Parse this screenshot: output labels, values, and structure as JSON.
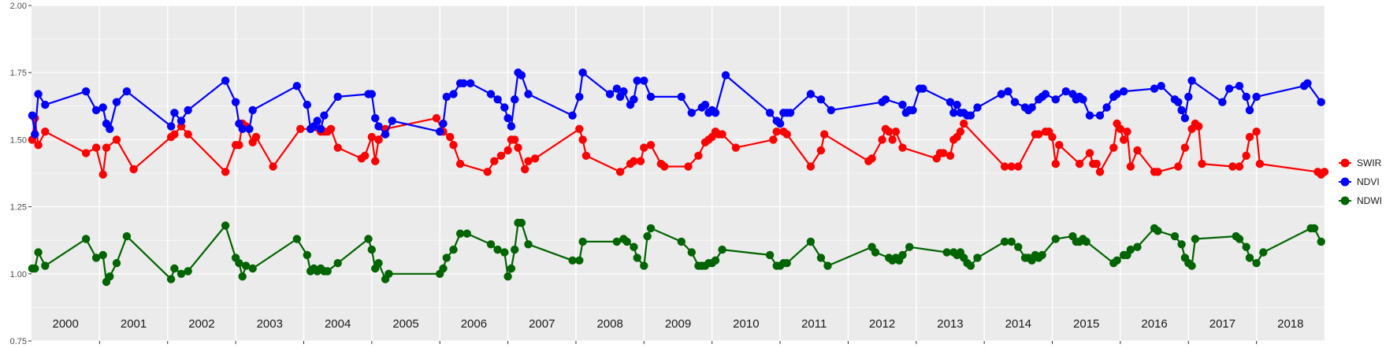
{
  "chart_data": {
    "type": "line",
    "title": "",
    "xlabel": "",
    "ylabel": "",
    "ylim": [
      0.75,
      2.0
    ],
    "xlim": [
      2000.0,
      2019.0
    ],
    "yticks": [
      "0.75",
      "1.00",
      "1.25",
      "1.50",
      "1.75",
      "2.00"
    ],
    "year_labels": [
      "2000",
      "2001",
      "2002",
      "2003",
      "2004",
      "2005",
      "2006",
      "2007",
      "2008",
      "2009",
      "2010",
      "2011",
      "2012",
      "2013",
      "2014",
      "2015",
      "2016",
      "2017",
      "2018"
    ],
    "grid": true,
    "legend_position": "right",
    "colors": {
      "panel": "#ebebeb",
      "grid": "#ffffff",
      "SWIR": "#ff0000",
      "NDVI": "#0000ff",
      "NDWI": "#006400"
    },
    "series": [
      {
        "name": "SWIR",
        "color": "#ff0000",
        "x": [
          2000.01,
          2000.05,
          2000.1,
          2000.2,
          2000.8,
          2000.95,
          2001.05,
          2001.1,
          2001.25,
          2001.5,
          2002.05,
          2002.1,
          2002.2,
          2002.3,
          2002.85,
          2003.0,
          2003.05,
          2003.1,
          2003.15,
          2003.25,
          2003.3,
          2003.3,
          2003.55,
          2003.95,
          2004.1,
          2004.25,
          2004.3,
          2004.35,
          2004.4,
          2004.5,
          2004.85,
          2004.9,
          2005.0,
          2005.05,
          2005.1,
          2005.1,
          2005.2,
          2005.95,
          2006.05,
          2006.15,
          2006.2,
          2006.3,
          2006.7,
          2006.8,
          2006.9,
          2007.0,
          2007.05,
          2007.1,
          2007.15,
          2007.25,
          2007.3,
          2007.4,
          2008.05,
          2008.1,
          2008.15,
          2008.65,
          2008.8,
          2008.85,
          2008.95,
          2009.0,
          2009.1,
          2009.25,
          2009.3,
          2009.65,
          2009.8,
          2009.9,
          2009.95,
          2010.0,
          2010.05,
          2010.1,
          2010.15,
          2010.35,
          2010.9,
          2010.95,
          2011.05,
          2011.1,
          2011.45,
          2011.6,
          2011.65,
          2012.3,
          2012.35,
          2012.5,
          2012.55,
          2012.6,
          2012.65,
          2012.7,
          2012.8,
          2013.3,
          2013.35,
          2013.4,
          2013.5,
          2013.55,
          2013.6,
          2013.65,
          2013.7,
          2014.3,
          2014.4,
          2014.5,
          2014.75,
          2014.8,
          2014.9,
          2014.95,
          2015.0,
          2015.05,
          2015.1,
          2015.4,
          2015.55,
          2015.6,
          2015.65,
          2015.7,
          2015.9,
          2015.95,
          2016.0,
          2016.05,
          2016.1,
          2016.15,
          2016.25,
          2016.5,
          2016.55,
          2016.85,
          2016.95,
          2017.05,
          2017.1,
          2017.15,
          2017.2,
          2017.65,
          2017.75,
          2017.85,
          2017.9,
          2018.0,
          2018.05,
          2018.9,
          2018.95,
          2019.0
        ],
        "values": [
          1.5,
          1.58,
          1.48,
          1.53,
          1.45,
          1.47,
          1.37,
          1.47,
          1.5,
          1.39,
          1.51,
          1.52,
          1.55,
          1.52,
          1.38,
          1.48,
          1.48,
          1.56,
          1.55,
          1.49,
          1.51,
          1.51,
          1.4,
          1.54,
          1.54,
          1.53,
          1.53,
          1.53,
          1.54,
          1.47,
          1.43,
          1.44,
          1.51,
          1.42,
          1.5,
          1.5,
          1.54,
          1.58,
          1.53,
          1.51,
          1.48,
          1.41,
          1.38,
          1.42,
          1.44,
          1.46,
          1.5,
          1.5,
          1.47,
          1.39,
          1.42,
          1.43,
          1.54,
          1.5,
          1.44,
          1.38,
          1.41,
          1.42,
          1.42,
          1.47,
          1.48,
          1.41,
          1.4,
          1.4,
          1.44,
          1.49,
          1.5,
          1.51,
          1.53,
          1.52,
          1.52,
          1.47,
          1.5,
          1.53,
          1.53,
          1.52,
          1.4,
          1.46,
          1.52,
          1.42,
          1.43,
          1.5,
          1.54,
          1.53,
          1.5,
          1.53,
          1.47,
          1.43,
          1.45,
          1.45,
          1.44,
          1.5,
          1.51,
          1.53,
          1.56,
          1.4,
          1.4,
          1.4,
          1.52,
          1.52,
          1.53,
          1.53,
          1.51,
          1.41,
          1.48,
          1.41,
          1.45,
          1.41,
          1.41,
          1.38,
          1.47,
          1.56,
          1.54,
          1.5,
          1.53,
          1.4,
          1.46,
          1.38,
          1.38,
          1.4,
          1.47,
          1.54,
          1.56,
          1.55,
          1.41,
          1.4,
          1.4,
          1.44,
          1.51,
          1.53,
          1.41,
          1.38,
          1.37,
          1.38
        ]
      },
      {
        "name": "NDVI",
        "color": "#0000ff",
        "x": [
          2000.01,
          2000.05,
          2000.1,
          2000.2,
          2000.8,
          2000.95,
          2001.05,
          2001.1,
          2001.15,
          2001.25,
          2001.4,
          2002.05,
          2002.1,
          2002.2,
          2002.3,
          2002.85,
          2003.0,
          2003.05,
          2003.1,
          2003.2,
          2003.25,
          2003.9,
          2004.05,
          2004.1,
          2004.15,
          2004.2,
          2004.25,
          2004.3,
          2004.5,
          2004.95,
          2005.0,
          2005.05,
          2005.1,
          2005.2,
          2005.3,
          2006.0,
          2006.05,
          2006.1,
          2006.2,
          2006.3,
          2006.35,
          2006.45,
          2006.75,
          2006.85,
          2006.95,
          2007.0,
          2007.05,
          2007.1,
          2007.15,
          2007.2,
          2007.3,
          2007.95,
          2008.05,
          2008.1,
          2008.5,
          2008.6,
          2008.65,
          2008.7,
          2008.8,
          2008.85,
          2008.9,
          2009.0,
          2009.1,
          2009.55,
          2009.7,
          2009.85,
          2009.9,
          2009.95,
          2010.0,
          2010.05,
          2010.2,
          2010.85,
          2010.95,
          2011.0,
          2011.05,
          2011.1,
          2011.15,
          2011.45,
          2011.6,
          2011.75,
          2012.5,
          2012.55,
          2012.8,
          2012.85,
          2012.9,
          2012.95,
          2013.05,
          2013.1,
          2013.5,
          2013.55,
          2013.6,
          2013.65,
          2013.7,
          2013.75,
          2013.8,
          2013.9,
          2014.25,
          2014.35,
          2014.45,
          2014.6,
          2014.65,
          2014.7,
          2014.8,
          2014.85,
          2014.9,
          2015.05,
          2015.2,
          2015.3,
          2015.35,
          2015.4,
          2015.45,
          2015.55,
          2015.7,
          2015.8,
          2015.9,
          2015.95,
          2016.05,
          2016.5,
          2016.6,
          2016.8,
          2016.85,
          2016.9,
          2016.95,
          2017.0,
          2017.05,
          2017.5,
          2017.6,
          2017.75,
          2017.85,
          2017.9,
          2018.0,
          2018.7,
          2018.75,
          2018.95
        ],
        "values": [
          1.59,
          1.52,
          1.67,
          1.63,
          1.68,
          1.61,
          1.62,
          1.56,
          1.54,
          1.64,
          1.68,
          1.55,
          1.6,
          1.57,
          1.61,
          1.72,
          1.64,
          1.56,
          1.54,
          1.54,
          1.61,
          1.7,
          1.63,
          1.54,
          1.55,
          1.57,
          1.54,
          1.59,
          1.66,
          1.67,
          1.67,
          1.58,
          1.55,
          1.52,
          1.57,
          1.53,
          1.56,
          1.66,
          1.67,
          1.71,
          1.71,
          1.71,
          1.67,
          1.65,
          1.62,
          1.58,
          1.55,
          1.65,
          1.75,
          1.74,
          1.67,
          1.59,
          1.66,
          1.75,
          1.67,
          1.69,
          1.66,
          1.68,
          1.63,
          1.65,
          1.72,
          1.72,
          1.66,
          1.66,
          1.6,
          1.62,
          1.63,
          1.6,
          1.61,
          1.6,
          1.74,
          1.6,
          1.57,
          1.56,
          1.6,
          1.6,
          1.6,
          1.67,
          1.65,
          1.61,
          1.64,
          1.65,
          1.63,
          1.6,
          1.61,
          1.61,
          1.69,
          1.69,
          1.64,
          1.6,
          1.63,
          1.6,
          1.6,
          1.59,
          1.59,
          1.62,
          1.67,
          1.68,
          1.64,
          1.62,
          1.61,
          1.62,
          1.65,
          1.66,
          1.67,
          1.65,
          1.68,
          1.67,
          1.65,
          1.66,
          1.65,
          1.59,
          1.59,
          1.62,
          1.66,
          1.67,
          1.68,
          1.69,
          1.7,
          1.65,
          1.64,
          1.61,
          1.58,
          1.66,
          1.72,
          1.64,
          1.69,
          1.7,
          1.66,
          1.61,
          1.66,
          1.7,
          1.71,
          1.64
        ]
      },
      {
        "name": "NDWI",
        "color": "#006400",
        "x": [
          2000.01,
          2000.05,
          2000.1,
          2000.2,
          2000.8,
          2000.95,
          2001.05,
          2001.1,
          2001.15,
          2001.25,
          2001.4,
          2002.05,
          2002.1,
          2002.2,
          2002.3,
          2002.85,
          2003.0,
          2003.05,
          2003.1,
          2003.15,
          2003.25,
          2003.9,
          2004.05,
          2004.1,
          2004.15,
          2004.2,
          2004.25,
          2004.3,
          2004.35,
          2004.5,
          2004.95,
          2005.0,
          2005.05,
          2005.1,
          2005.2,
          2005.25,
          2006.0,
          2006.05,
          2006.1,
          2006.2,
          2006.3,
          2006.4,
          2006.75,
          2006.85,
          2006.95,
          2007.0,
          2007.05,
          2007.1,
          2007.15,
          2007.2,
          2007.3,
          2007.95,
          2008.05,
          2008.1,
          2008.6,
          2008.7,
          2008.75,
          2008.85,
          2008.9,
          2009.0,
          2009.05,
          2009.1,
          2009.55,
          2009.7,
          2009.8,
          2009.85,
          2009.9,
          2009.95,
          2010.0,
          2010.05,
          2010.15,
          2010.85,
          2010.95,
          2011.0,
          2011.05,
          2011.1,
          2011.45,
          2011.6,
          2011.7,
          2012.35,
          2012.4,
          2012.6,
          2012.65,
          2012.7,
          2012.75,
          2012.8,
          2012.9,
          2013.45,
          2013.55,
          2013.6,
          2013.65,
          2013.7,
          2013.75,
          2013.8,
          2013.9,
          2014.3,
          2014.4,
          2014.5,
          2014.6,
          2014.65,
          2014.7,
          2014.75,
          2014.8,
          2014.85,
          2015.05,
          2015.3,
          2015.35,
          2015.4,
          2015.45,
          2015.5,
          2015.9,
          2015.95,
          2016.05,
          2016.1,
          2016.15,
          2016.25,
          2016.5,
          2016.55,
          2016.8,
          2016.9,
          2016.95,
          2017.0,
          2017.05,
          2017.1,
          2017.7,
          2017.75,
          2017.85,
          2017.9,
          2018.0,
          2018.1,
          2018.8,
          2018.85,
          2018.95
        ],
        "values": [
          1.02,
          1.02,
          1.08,
          1.03,
          1.13,
          1.06,
          1.07,
          0.97,
          0.99,
          1.04,
          1.14,
          0.98,
          1.02,
          1.0,
          1.01,
          1.18,
          1.06,
          1.04,
          0.99,
          1.03,
          1.02,
          1.13,
          1.07,
          1.01,
          1.02,
          1.01,
          1.02,
          1.01,
          1.01,
          1.04,
          1.13,
          1.09,
          1.02,
          1.04,
          0.98,
          1.0,
          1.0,
          1.02,
          1.06,
          1.09,
          1.15,
          1.15,
          1.11,
          1.09,
          1.08,
          0.99,
          1.02,
          1.09,
          1.19,
          1.19,
          1.11,
          1.05,
          1.05,
          1.12,
          1.12,
          1.13,
          1.12,
          1.1,
          1.06,
          1.03,
          1.14,
          1.17,
          1.12,
          1.08,
          1.03,
          1.03,
          1.03,
          1.04,
          1.04,
          1.05,
          1.09,
          1.07,
          1.03,
          1.03,
          1.04,
          1.04,
          1.12,
          1.06,
          1.03,
          1.1,
          1.08,
          1.06,
          1.05,
          1.06,
          1.05,
          1.07,
          1.1,
          1.08,
          1.08,
          1.07,
          1.08,
          1.06,
          1.04,
          1.03,
          1.06,
          1.12,
          1.12,
          1.1,
          1.06,
          1.06,
          1.05,
          1.07,
          1.06,
          1.07,
          1.13,
          1.14,
          1.12,
          1.12,
          1.13,
          1.12,
          1.04,
          1.05,
          1.07,
          1.07,
          1.09,
          1.1,
          1.17,
          1.16,
          1.14,
          1.11,
          1.06,
          1.04,
          1.03,
          1.13,
          1.14,
          1.13,
          1.1,
          1.06,
          1.04,
          1.08,
          1.17,
          1.17,
          1.12
        ]
      }
    ]
  }
}
